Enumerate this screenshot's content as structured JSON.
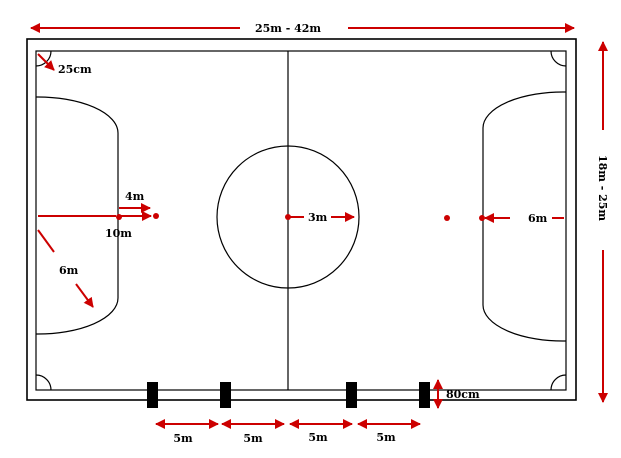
{
  "labels": {
    "length": "25m - 42m",
    "width": "18m - 25m",
    "corner_radius": "25cm",
    "penalty_spot": "4m",
    "second_penalty": "10m",
    "penalty_area_radius_left": "6m",
    "penalty_area_radius_right": "6m",
    "center_circle": "3m",
    "substitution_depth": "80cm",
    "substitution_spacing": [
      "5m",
      "5m",
      "5m",
      "5m"
    ]
  },
  "colors": {
    "line": "#000000",
    "arrow": "#cc0000",
    "background": "#ffffff"
  }
}
